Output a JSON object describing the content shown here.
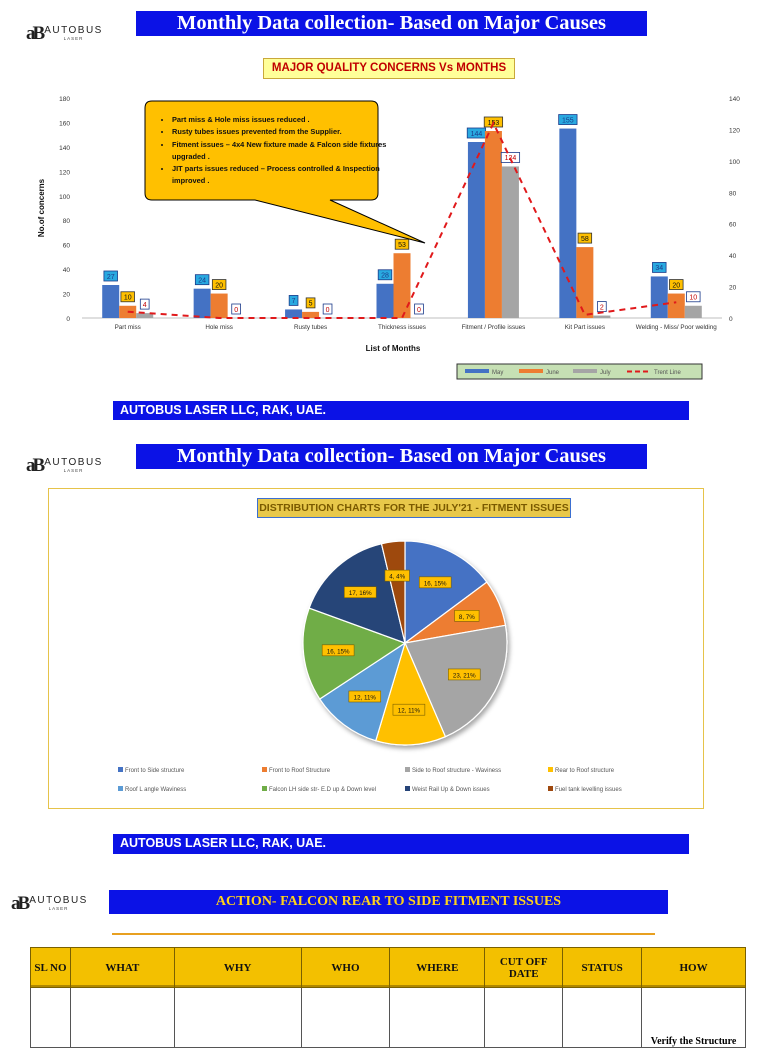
{
  "company": {
    "logo_text": "AUTOBUS",
    "logo_sub": "LASER",
    "footer": "AUTOBUS LASER LLC, RAK, UAE."
  },
  "section1": {
    "banner": "Monthly Data collection- Based on Major Causes",
    "chart_title": "MAJOR QUALITY CONCERNS Vs MONTHS",
    "callout": [
      "Part miss & Hole miss issues reduced .",
      "Rusty tubes issues prevented from the Supplier.",
      "Fitment issues – 4x4 New fixture made & Falcon side fixtures upgraded .",
      "JIT parts issues reduced – Process controlled & Inspection improved ."
    ]
  },
  "section2": {
    "banner": "Monthly Data collection- Based on Major Causes",
    "chart_title": "DISTRIBUTION CHARTS FOR THE JULY'21 - FITMENT ISSUES"
  },
  "section3": {
    "banner": "ACTION- FALCON REAR TO SIDE FITMENT ISSUES",
    "headers": [
      "SL NO",
      "WHAT",
      "WHY",
      "WHO",
      "WHERE",
      "CUT OFF DATE",
      "STATUS",
      "HOW"
    ],
    "first_row_how": "Verify the Structure"
  },
  "chart_data": [
    {
      "type": "bar",
      "title": "MAJOR QUALITY CONCERNS Vs MONTHS",
      "xlabel": "List of Months",
      "ylabel": "No.of concerns",
      "ylim": [
        0,
        180
      ],
      "y2lim": [
        0,
        140
      ],
      "yticks": [
        0,
        20,
        40,
        60,
        80,
        100,
        120,
        140,
        160,
        180
      ],
      "y2ticks": [
        0,
        20,
        40,
        60,
        80,
        100,
        120,
        140
      ],
      "categories": [
        "Part miss",
        "Hole miss",
        "Rusty tubes",
        "Thickness issues",
        "Fitment / Profile issues",
        "Kit Part issues",
        "Welding - Miss/ Poor welding"
      ],
      "series": [
        {
          "name": "May",
          "color": "#4472c4",
          "values": [
            27,
            24,
            7,
            28,
            144,
            155,
            34
          ]
        },
        {
          "name": "June",
          "color": "#ed7d31",
          "values": [
            10,
            20,
            5,
            53,
            153,
            58,
            20
          ]
        },
        {
          "name": "July",
          "color": "#a5a5a5",
          "values": [
            4,
            0,
            0,
            0,
            124,
            2,
            10
          ]
        }
      ],
      "trend_line": {
        "name": "Trent Line",
        "color": "#e0191b",
        "axis": "secondary",
        "values": [
          4,
          0,
          0,
          0,
          124,
          2,
          10
        ]
      },
      "legend": "bottom-right"
    },
    {
      "type": "pie",
      "title": "DISTRIBUTION CHARTS FOR THE JULY'21 - FITMENT ISSUES",
      "slices": [
        {
          "name": "Front to Side structure",
          "value": 16,
          "label": "16, 15%",
          "color": "#4472c4"
        },
        {
          "name": "Front to Roof Structure",
          "value": 8,
          "label": "8, 7%",
          "color": "#ed7d31"
        },
        {
          "name": "Side to Roof structure - Waviness",
          "value": 23,
          "label": "23, 21%",
          "color": "#a5a5a5"
        },
        {
          "name": "Rear to Roof structure",
          "value": 12,
          "label": "12, 11%",
          "color": "#ffc000"
        },
        {
          "name": "Roof L angle Waviness",
          "value": 12,
          "label": "12, 11%",
          "color": "#5b9bd5"
        },
        {
          "name": "Falcon LH side str- E.D up & Down level",
          "value": 16,
          "label": "16, 15%",
          "color": "#70ad47"
        },
        {
          "name": "Weist Rail Up & Down issues",
          "value": 17,
          "label": "17, 16%",
          "color": "#264478"
        },
        {
          "name": "Fuel tank levelling issues",
          "value": 4,
          "label": "4, 4%",
          "color": "#9e480e"
        }
      ],
      "legend": "bottom"
    }
  ]
}
